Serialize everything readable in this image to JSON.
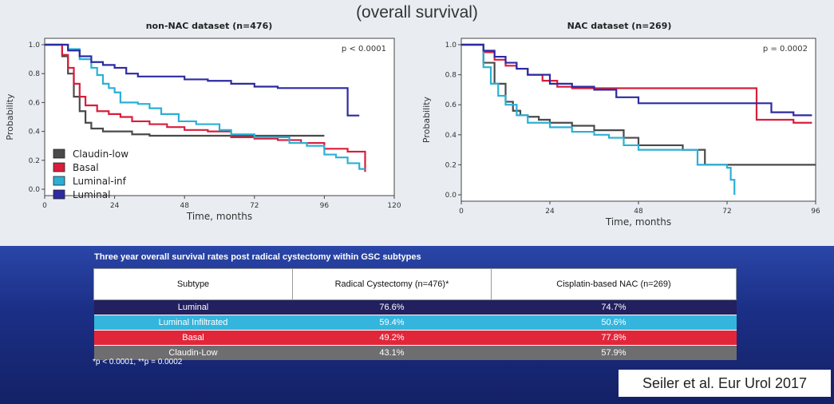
{
  "title": "(overall survival)",
  "chart_data": [
    {
      "type": "line",
      "title": "non-NAC dataset (n=476)",
      "xlabel": "Time, months",
      "ylabel": "Probability",
      "xlim": [
        0,
        120
      ],
      "ylim": [
        0,
        1.0
      ],
      "xticks": [
        0,
        24,
        48,
        72,
        96,
        120
      ],
      "yticks": [
        0.0,
        0.2,
        0.4,
        0.6,
        0.8,
        1.0
      ],
      "annotation": "p < 0.0001",
      "legend_position": "bottom-left",
      "series": [
        {
          "name": "Claudin-low",
          "color": "#4a4a4a",
          "x": [
            0,
            4,
            6,
            8,
            10,
            12,
            14,
            16,
            20,
            24,
            30,
            36,
            48,
            60,
            72,
            84,
            96
          ],
          "y": [
            1.0,
            1.0,
            0.92,
            0.8,
            0.64,
            0.54,
            0.46,
            0.42,
            0.4,
            0.4,
            0.38,
            0.37,
            0.37,
            0.37,
            0.37,
            0.37,
            0.37
          ]
        },
        {
          "name": "Basal",
          "color": "#d81e3c",
          "x": [
            0,
            4,
            6,
            8,
            10,
            12,
            14,
            18,
            22,
            26,
            30,
            36,
            42,
            48,
            56,
            64,
            72,
            80,
            88,
            96,
            104,
            108,
            110
          ],
          "y": [
            1.0,
            1.0,
            0.93,
            0.84,
            0.73,
            0.64,
            0.58,
            0.54,
            0.52,
            0.5,
            0.47,
            0.45,
            0.43,
            0.41,
            0.4,
            0.36,
            0.35,
            0.34,
            0.32,
            0.28,
            0.26,
            0.26,
            0.12
          ]
        },
        {
          "name": "Luminal-inf",
          "color": "#2ab0d6",
          "x": [
            0,
            4,
            8,
            12,
            16,
            18,
            20,
            22,
            24,
            26,
            32,
            36,
            40,
            46,
            52,
            60,
            64,
            72,
            80,
            84,
            90,
            96,
            100,
            104,
            108,
            110
          ],
          "y": [
            1.0,
            1.0,
            0.97,
            0.9,
            0.84,
            0.79,
            0.73,
            0.7,
            0.67,
            0.6,
            0.59,
            0.56,
            0.52,
            0.47,
            0.45,
            0.41,
            0.38,
            0.36,
            0.36,
            0.32,
            0.3,
            0.24,
            0.22,
            0.18,
            0.14,
            0.14
          ]
        },
        {
          "name": "Luminal",
          "color": "#2d2aa2",
          "x": [
            0,
            4,
            8,
            12,
            16,
            20,
            24,
            28,
            32,
            40,
            48,
            56,
            64,
            72,
            80,
            88,
            96,
            104,
            108
          ],
          "y": [
            1.0,
            1.0,
            0.96,
            0.92,
            0.88,
            0.86,
            0.84,
            0.8,
            0.78,
            0.78,
            0.76,
            0.75,
            0.73,
            0.71,
            0.7,
            0.7,
            0.7,
            0.51,
            0.51
          ]
        }
      ]
    },
    {
      "type": "line",
      "title": "NAC dataset (n=269)",
      "xlabel": "Time, months",
      "ylabel": "Probability",
      "xlim": [
        0,
        96
      ],
      "ylim": [
        0,
        1.0
      ],
      "xticks": [
        0,
        24,
        48,
        72,
        96
      ],
      "yticks": [
        0.0,
        0.2,
        0.4,
        0.6,
        0.8,
        1.0
      ],
      "annotation": "p = 0.0002",
      "series": [
        {
          "name": "Claudin-low",
          "color": "#4a4a4a",
          "x": [
            0,
            3,
            6,
            9,
            12,
            14,
            16,
            18,
            21,
            24,
            30,
            36,
            44,
            48,
            60,
            66,
            72,
            96
          ],
          "y": [
            1.0,
            1.0,
            0.88,
            0.74,
            0.62,
            0.56,
            0.53,
            0.52,
            0.5,
            0.48,
            0.46,
            0.43,
            0.38,
            0.33,
            0.3,
            0.2,
            0.2,
            0.2
          ]
        },
        {
          "name": "Basal",
          "color": "#d81e3c",
          "x": [
            0,
            3,
            6,
            9,
            12,
            15,
            18,
            22,
            26,
            30,
            36,
            42,
            48,
            54,
            60,
            66,
            72,
            78,
            80,
            84,
            90,
            95
          ],
          "y": [
            1.0,
            1.0,
            0.95,
            0.9,
            0.86,
            0.84,
            0.8,
            0.76,
            0.72,
            0.71,
            0.71,
            0.71,
            0.71,
            0.71,
            0.71,
            0.71,
            0.71,
            0.71,
            0.5,
            0.5,
            0.48,
            0.48
          ]
        },
        {
          "name": "Luminal-inf",
          "color": "#2ab0d6",
          "x": [
            0,
            3,
            6,
            8,
            10,
            12,
            15,
            18,
            24,
            30,
            36,
            40,
            44,
            48,
            56,
            62,
            64,
            70,
            72,
            73,
            74
          ],
          "y": [
            1.0,
            1.0,
            0.85,
            0.74,
            0.66,
            0.6,
            0.53,
            0.48,
            0.45,
            0.42,
            0.4,
            0.38,
            0.33,
            0.3,
            0.3,
            0.3,
            0.2,
            0.2,
            0.18,
            0.1,
            0.0
          ]
        },
        {
          "name": "Luminal",
          "color": "#2d2aa2",
          "x": [
            0,
            3,
            6,
            9,
            12,
            15,
            18,
            24,
            30,
            36,
            42,
            48,
            56,
            64,
            72,
            80,
            84,
            90,
            95
          ],
          "y": [
            1.0,
            1.0,
            0.96,
            0.92,
            0.88,
            0.84,
            0.8,
            0.74,
            0.72,
            0.7,
            0.65,
            0.61,
            0.61,
            0.61,
            0.61,
            0.61,
            0.55,
            0.53,
            0.53
          ]
        }
      ]
    }
  ],
  "table": {
    "caption": "Three year overall survival rates post radical cystectomy within GSC subtypes",
    "headers": [
      "Subtype",
      "Radical Cystectomy (n=476)*",
      "Cisplatin-based NAC (n=269)"
    ],
    "rows": [
      {
        "subtype": "Luminal",
        "rc": "76.6%",
        "nac": "74.7%",
        "color": "#22205e"
      },
      {
        "subtype": "Luminal Infiltrated",
        "rc": "59.4%",
        "nac": "50.6%",
        "color": "#33b5dd"
      },
      {
        "subtype": "Basal",
        "rc": "49.2%",
        "nac": "77.8%",
        "color": "#e2263a"
      },
      {
        "subtype": "Claudin-Low",
        "rc": "43.1%",
        "nac": "57.9%",
        "color": "#6e6e70"
      }
    ]
  },
  "footnote": "*p < 0.0001, **p = 0.0002",
  "citation": "Seiler et al. Eur Urol 2017"
}
